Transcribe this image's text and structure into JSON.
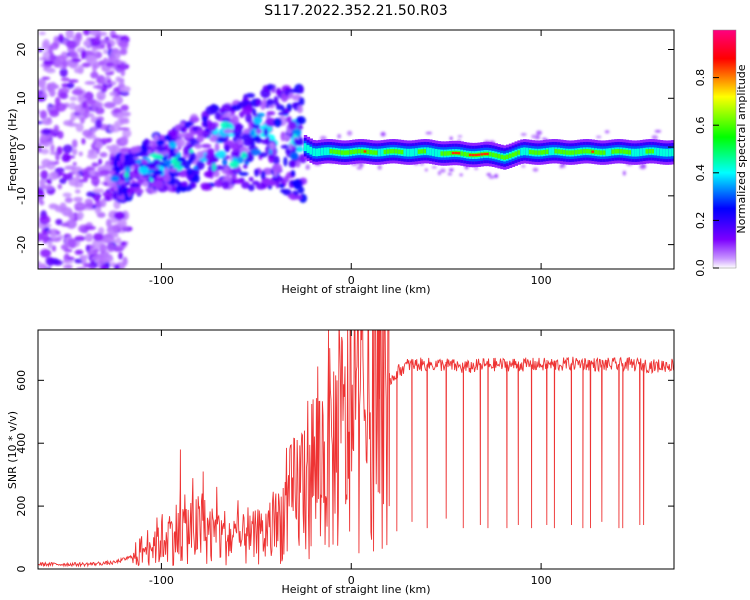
{
  "title": "S117.2022.352.21.50.R03",
  "chart_data": [
    {
      "type": "heatmap",
      "name": "spectrogram",
      "xlabel": "Height of straight line (km)",
      "ylabel": "Frequency (Hz)",
      "xlim": [
        -165,
        170
      ],
      "ylim": [
        -25,
        24
      ],
      "xticks": [
        -100,
        0,
        100
      ],
      "yticks": [
        -20,
        -10,
        0,
        10,
        20
      ],
      "colorbar": {
        "label": "Normalized spectral amplitude",
        "range": [
          0,
          1
        ],
        "ticks": [
          0.0,
          0.2,
          0.4,
          0.6,
          0.8
        ],
        "tick_labels": [
          "0.0",
          "0.2",
          "0.4",
          "0.6",
          "0.8"
        ],
        "colormap": [
          "#ffffff",
          "#7c00ff",
          "#0000ff",
          "#00ffff",
          "#00ff00",
          "#ffff00",
          "#ff0000",
          "#ff0080"
        ]
      },
      "ridge": {
        "x": [
          -120,
          -100,
          -80,
          -60,
          -40,
          -30,
          -20,
          0,
          20,
          40,
          60,
          70,
          80,
          90,
          100,
          120,
          140,
          160,
          170
        ],
        "freq": [
          -6,
          -3,
          -1,
          1,
          2,
          1,
          -1,
          -1,
          -1,
          -1,
          -1.5,
          -1.5,
          -2,
          -1,
          -1,
          -1,
          -1,
          -1,
          -1
        ],
        "amplitude": [
          0.15,
          0.2,
          0.25,
          0.3,
          0.3,
          0.3,
          0.5,
          0.8,
          0.6,
          0.5,
          0.9,
          0.9,
          0.7,
          0.6,
          0.6,
          0.8,
          0.6,
          0.5,
          0.5
        ]
      }
    },
    {
      "type": "line",
      "name": "snr",
      "xlabel": "Height of straight line (km)",
      "ylabel": "SNR (10 * v/v)",
      "xlim": [
        -165,
        170
      ],
      "ylim": [
        0,
        760
      ],
      "xticks": [
        -100,
        0,
        100
      ],
      "yticks": [
        0,
        200,
        400,
        600
      ],
      "series": [
        {
          "name": "SNR",
          "color": "#ee3333",
          "x": [
            -165,
            -140,
            -125,
            -115,
            -105,
            -95,
            -85,
            -75,
            -65,
            -55,
            -45,
            -40,
            -35,
            -30,
            -25,
            -20,
            -15,
            -10,
            -5,
            0,
            5,
            10,
            15,
            20,
            25,
            30,
            40,
            50,
            60,
            70,
            80,
            90,
            100,
            110,
            120,
            130,
            140,
            150,
            160,
            170
          ],
          "y": [
            15,
            15,
            20,
            40,
            80,
            110,
            130,
            120,
            100,
            90,
            110,
            130,
            180,
            230,
            280,
            320,
            350,
            380,
            420,
            450,
            480,
            510,
            540,
            600,
            630,
            650,
            650,
            650,
            640,
            650,
            650,
            650,
            650,
            650,
            655,
            650,
            650,
            650,
            645,
            650
          ],
          "spikes": [
            {
              "x": -90,
              "y": 380
            },
            {
              "x": -78,
              "y": 310
            },
            {
              "x": -12,
              "y": 760
            },
            {
              "x": 5,
              "y": 680
            },
            {
              "x": 60,
              "y": 660
            },
            {
              "x": 170,
              "y": 690
            }
          ],
          "dropouts": [
            {
              "x": 15,
              "y": 240
            },
            {
              "x": 20,
              "y": 200
            },
            {
              "x": 24,
              "y": 120
            },
            {
              "x": 32,
              "y": 150
            },
            {
              "x": 40,
              "y": 130
            },
            {
              "x": 50,
              "y": 160
            },
            {
              "x": 59,
              "y": 130
            },
            {
              "x": 68,
              "y": 140
            },
            {
              "x": 72,
              "y": 130
            },
            {
              "x": 82,
              "y": 130
            },
            {
              "x": 88,
              "y": 140
            },
            {
              "x": 95,
              "y": 130
            },
            {
              "x": 103,
              "y": 140
            },
            {
              "x": 107,
              "y": 130
            },
            {
              "x": 116,
              "y": 140
            },
            {
              "x": 122,
              "y": 130
            },
            {
              "x": 126,
              "y": 130
            },
            {
              "x": 132,
              "y": 150
            },
            {
              "x": 141,
              "y": 130
            },
            {
              "x": 143,
              "y": 130
            },
            {
              "x": 152,
              "y": 140
            },
            {
              "x": 154,
              "y": 140
            }
          ]
        }
      ]
    }
  ]
}
